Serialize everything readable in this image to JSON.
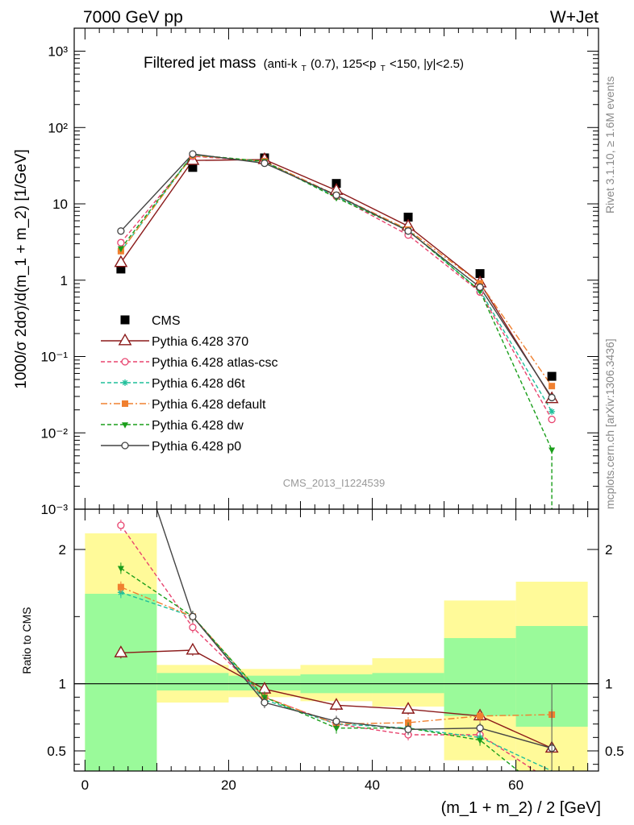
{
  "header": {
    "left": "7000 GeV pp",
    "right": "W+Jet"
  },
  "plot_title": {
    "main": "Filtered jet mass",
    "cut_a": "(anti-k",
    "cut_a_sub": "T",
    "cut_b": "(0.7), 125<p",
    "cut_b_sub": "T",
    "cut_c": "<150, |y|<2.5)"
  },
  "side_labels": {
    "rivet": "Rivet 3.1.10, ≥ 1.6M events",
    "mcplots": "mcplots.cern.ch [arXiv:1306.3436]"
  },
  "analysis_id": "CMS_2013_I1224539",
  "colors": {
    "data": "#000000",
    "p370": "#8b1a1a",
    "atlascsc": "#e8446f",
    "d6t": "#1fbf9a",
    "default": "#f08030",
    "dw": "#1a9e1a",
    "p0": "#444444",
    "band_inner": "#9afa9a",
    "band_outer": "#fffa99"
  },
  "chart_data": [
    {
      "type": "line",
      "panel": "main",
      "ylabel": "1000/σ 2dσ)/d(m_1 + m_2) [1/GeV]",
      "yscale": "log",
      "ylim": [
        0.001,
        2000
      ],
      "y_ticks": [
        "10⁻³",
        "10⁻²",
        "10⁻¹",
        "1",
        "10",
        "10²",
        "10³"
      ],
      "x": [
        5,
        15,
        25,
        35,
        45,
        55,
        65
      ],
      "legend_position": "center-left",
      "series": [
        {
          "name": "CMS",
          "key": "data",
          "values": [
            1.4,
            30,
            40,
            18.5,
            6.7,
            1.22,
            0.055
          ]
        },
        {
          "name": "Pythia 6.428 370",
          "key": "p370",
          "values": [
            1.7,
            37,
            38,
            15,
            5.1,
            0.92,
            0.028
          ]
        },
        {
          "name": "Pythia 6.428 atlas-csc",
          "key": "atlascsc",
          "values": [
            3.1,
            42,
            36,
            12.5,
            3.9,
            0.7,
            0.015
          ]
        },
        {
          "name": "Pythia 6.428 d6t",
          "key": "d6t",
          "values": [
            2.4,
            44,
            35,
            12.5,
            4.5,
            0.73,
            0.019
          ]
        },
        {
          "name": "Pythia 6.428 default",
          "key": "default",
          "values": [
            2.4,
            43,
            36,
            13,
            4.6,
            0.91,
            0.041
          ]
        },
        {
          "name": "Pythia 6.428 dw",
          "key": "dw",
          "values": [
            2.6,
            44,
            36,
            12,
            4.5,
            0.72,
            0.006
          ]
        },
        {
          "name": "Pythia 6.428 p0",
          "key": "p0",
          "values": [
            4.4,
            45,
            34,
            13,
            4.4,
            0.81,
            0.029
          ]
        }
      ]
    },
    {
      "type": "line",
      "panel": "ratio",
      "xlabel": "(m_1 + m_2) / 2 [GeV]",
      "ylabel": "Ratio to CMS",
      "xlim": [
        -1.5,
        71.5
      ],
      "x_ticks": [
        0,
        20,
        40,
        60
      ],
      "ylim": [
        0.35,
        2.3
      ],
      "y_ticks": [
        "0.5",
        "1",
        "2"
      ],
      "x": [
        5,
        15,
        25,
        35,
        45,
        55,
        65
      ],
      "band_bins": [
        [
          0,
          10
        ],
        [
          10,
          20
        ],
        [
          20,
          30
        ],
        [
          30,
          40
        ],
        [
          40,
          50
        ],
        [
          50,
          60
        ],
        [
          60,
          70
        ]
      ],
      "band_inner": [
        [
          0.35,
          1.67
        ],
        [
          0.95,
          1.08
        ],
        [
          0.95,
          1.06
        ],
        [
          0.93,
          1.07
        ],
        [
          0.93,
          1.08
        ],
        [
          0.76,
          1.34
        ],
        [
          0.68,
          1.43
        ]
      ],
      "band_outer": [
        [
          0.35,
          2.12
        ],
        [
          0.86,
          1.14
        ],
        [
          0.9,
          1.11
        ],
        [
          0.87,
          1.14
        ],
        [
          0.83,
          1.19
        ],
        [
          0.43,
          1.62
        ],
        [
          0.35,
          1.76
        ]
      ],
      "series": [
        {
          "name": "Pythia 6.428 370",
          "key": "p370",
          "values": [
            1.23,
            1.25,
            0.96,
            0.84,
            0.81,
            0.76,
            0.52
          ]
        },
        {
          "name": "Pythia 6.428 atlas-csc",
          "key": "atlascsc",
          "values": [
            2.18,
            1.42,
            0.9,
            0.7,
            0.62,
            0.62,
            0.27
          ]
        },
        {
          "name": "Pythia 6.428 d6t",
          "key": "d6t",
          "values": [
            1.68,
            1.5,
            0.88,
            0.7,
            0.67,
            0.6,
            0.35
          ]
        },
        {
          "name": "Pythia 6.428 default",
          "key": "default",
          "values": [
            1.72,
            1.5,
            0.9,
            0.7,
            0.71,
            0.76,
            0.77
          ]
        },
        {
          "name": "Pythia 6.428 dw",
          "key": "dw",
          "values": [
            1.86,
            1.5,
            0.9,
            0.67,
            0.67,
            0.58,
            0.15
          ]
        },
        {
          "name": "Pythia 6.428 p0",
          "key": "p0",
          "values": [
            3.1,
            1.5,
            0.86,
            0.72,
            0.66,
            0.67,
            0.52
          ]
        }
      ]
    }
  ]
}
